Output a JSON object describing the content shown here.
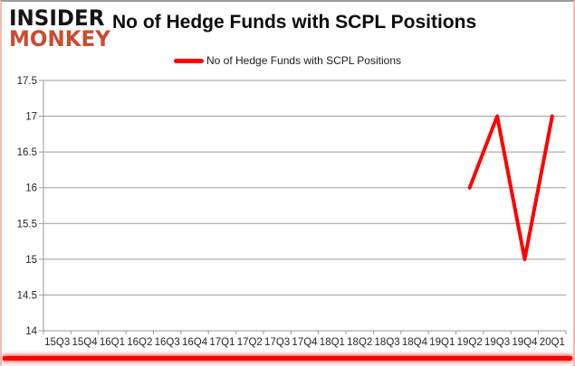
{
  "logo": {
    "line1": "INSIDER",
    "line2": "MONKEY"
  },
  "header": {
    "title": "No of Hedge Funds with SCPL Positions"
  },
  "legend": {
    "label": "No of Hedge Funds with SCPL Positions",
    "swatch_color": "#fe0000"
  },
  "chart_data": {
    "type": "line",
    "title": "No of Hedge Funds with SCPL Positions",
    "categories": [
      "15Q3",
      "15Q4",
      "16Q1",
      "16Q2",
      "16Q3",
      "16Q4",
      "17Q1",
      "17Q2",
      "17Q3",
      "17Q4",
      "18Q1",
      "18Q2",
      "18Q3",
      "18Q4",
      "19Q1",
      "19Q2",
      "19Q3",
      "19Q4",
      "20Q1"
    ],
    "series": [
      {
        "name": "No of Hedge Funds with SCPL Positions",
        "color": "#fe0000",
        "values": [
          null,
          null,
          null,
          null,
          null,
          null,
          null,
          null,
          null,
          null,
          null,
          null,
          null,
          null,
          null,
          16,
          17,
          15,
          17
        ]
      }
    ],
    "ylim": [
      14,
      17.5
    ],
    "ytick_step": 0.5,
    "ytick_labels": [
      "14",
      "14.5",
      "15",
      "15.5",
      "16",
      "16.5",
      "17",
      "17.5"
    ],
    "grid": true,
    "gridline_color": "#9a9a9a",
    "axis_color": "#9a9a9a",
    "tick_label_color": "#262626",
    "legend_position": "top-center",
    "line_width": 4
  }
}
